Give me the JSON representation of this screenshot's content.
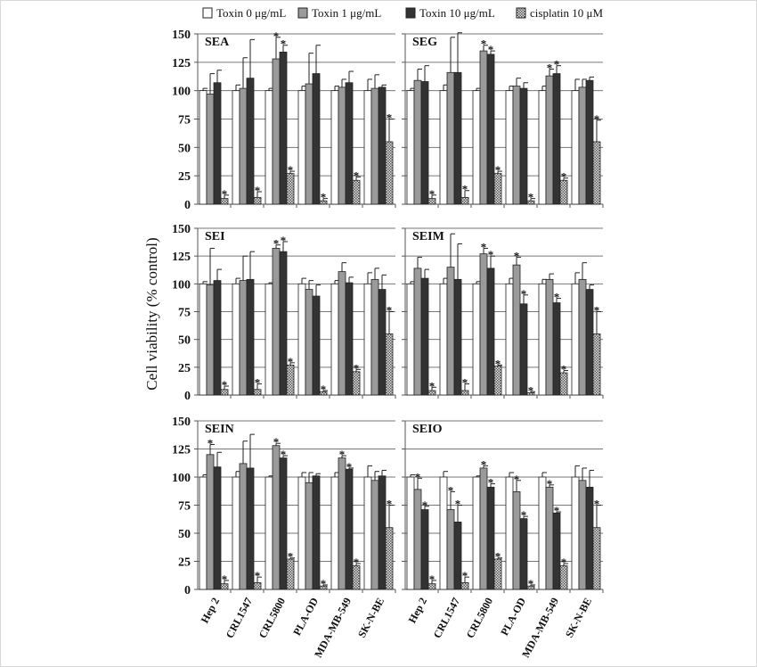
{
  "chart_data": {
    "type": "bar",
    "ylabel": "Cell viability (% control)",
    "ylim": [
      0,
      150
    ],
    "yticks": [
      0,
      25,
      50,
      75,
      100,
      125,
      150
    ],
    "grid": true,
    "legend_placement": "top",
    "categories": [
      "Hep 2",
      "CRL1547",
      "CRL5800",
      "PLA-OD",
      "MDA-MB-549",
      "SK-N-BE"
    ],
    "series_meta": [
      {
        "name": "Toxin 0 μg/mL",
        "color": "#ffffff",
        "pattern": "solid"
      },
      {
        "name": "Toxin 1 μg/mL",
        "color": "#9a9a9a",
        "pattern": "solid"
      },
      {
        "name": "Toxin 10 μg/mL",
        "color": "#333333",
        "pattern": "solid"
      },
      {
        "name": "cisplatin  10 μM",
        "color": "#bbbbbb",
        "pattern": "checker"
      }
    ],
    "panels": [
      {
        "title": "SEA",
        "values": [
          [
            100,
            97,
            107,
            5
          ],
          [
            100,
            102,
            111,
            6
          ],
          [
            100,
            128,
            134,
            27
          ],
          [
            100,
            106,
            115,
            3
          ],
          [
            100,
            103,
            107,
            21
          ],
          [
            100,
            102,
            103,
            55
          ]
        ],
        "errors": [
          [
            2,
            18,
            11,
            3
          ],
          [
            5,
            27,
            34,
            5
          ],
          [
            2,
            19,
            6,
            2
          ],
          [
            4,
            27,
            25,
            2
          ],
          [
            4,
            7,
            10,
            3
          ],
          [
            10,
            12,
            2,
            20
          ]
        ],
        "significant": [
          [
            0,
            0,
            0,
            1
          ],
          [
            0,
            0,
            0,
            1
          ],
          [
            0,
            1,
            1,
            1
          ],
          [
            0,
            0,
            0,
            1
          ],
          [
            0,
            0,
            0,
            1
          ],
          [
            0,
            0,
            0,
            1
          ]
        ]
      },
      {
        "title": "SEG",
        "values": [
          [
            100,
            109,
            108,
            5
          ],
          [
            100,
            116,
            116,
            6
          ],
          [
            100,
            135,
            132,
            27
          ],
          [
            100,
            104,
            102,
            3
          ],
          [
            100,
            113,
            115,
            21
          ],
          [
            100,
            103,
            109,
            55
          ]
        ],
        "errors": [
          [
            2,
            10,
            14,
            3
          ],
          [
            5,
            31,
            35,
            6
          ],
          [
            2,
            5,
            3,
            2
          ],
          [
            4,
            7,
            5,
            2
          ],
          [
            4,
            6,
            7,
            2
          ],
          [
            10,
            7,
            3,
            19
          ]
        ],
        "significant": [
          [
            0,
            0,
            0,
            1
          ],
          [
            0,
            0,
            0,
            1
          ],
          [
            0,
            1,
            1,
            1
          ],
          [
            0,
            0,
            0,
            1
          ],
          [
            0,
            1,
            1,
            1
          ],
          [
            0,
            0,
            0,
            1
          ]
        ]
      },
      {
        "title": "SEI",
        "values": [
          [
            100,
            99,
            103,
            5
          ],
          [
            100,
            103,
            104,
            5
          ],
          [
            100,
            132,
            129,
            27
          ],
          [
            100,
            95,
            89,
            3
          ],
          [
            100,
            111,
            101,
            21
          ],
          [
            100,
            104,
            95,
            55
          ]
        ],
        "errors": [
          [
            2,
            33,
            10,
            3
          ],
          [
            5,
            22,
            25,
            5
          ],
          [
            1,
            3,
            9,
            2
          ],
          [
            5,
            8,
            10,
            1
          ],
          [
            3,
            8,
            5,
            2
          ],
          [
            10,
            10,
            13,
            20
          ]
        ],
        "significant": [
          [
            0,
            0,
            0,
            1
          ],
          [
            0,
            0,
            0,
            1
          ],
          [
            0,
            1,
            1,
            1
          ],
          [
            0,
            0,
            0,
            1
          ],
          [
            0,
            0,
            0,
            1
          ],
          [
            0,
            0,
            0,
            1
          ]
        ]
      },
      {
        "title": "SEIM",
        "values": [
          [
            100,
            114,
            105,
            4
          ],
          [
            100,
            115,
            104,
            4
          ],
          [
            100,
            127,
            114,
            26
          ],
          [
            100,
            117,
            82,
            2
          ],
          [
            100,
            104,
            83,
            20
          ],
          [
            100,
            104,
            95,
            55
          ]
        ],
        "errors": [
          [
            2,
            10,
            8,
            3
          ],
          [
            5,
            30,
            32,
            6
          ],
          [
            2,
            5,
            11,
            1
          ],
          [
            5,
            7,
            8,
            1
          ],
          [
            4,
            5,
            4,
            2
          ],
          [
            10,
            15,
            4,
            20
          ]
        ],
        "significant": [
          [
            0,
            0,
            0,
            1
          ],
          [
            0,
            0,
            0,
            1
          ],
          [
            0,
            1,
            1,
            1
          ],
          [
            0,
            1,
            1,
            1
          ],
          [
            0,
            0,
            1,
            1
          ],
          [
            0,
            0,
            0,
            1
          ]
        ]
      },
      {
        "title": "SEIN",
        "values": [
          [
            100,
            120,
            109,
            5
          ],
          [
            100,
            112,
            108,
            6
          ],
          [
            100,
            128,
            117,
            27
          ],
          [
            100,
            95,
            101,
            3
          ],
          [
            100,
            117,
            107,
            21
          ],
          [
            100,
            97,
            101,
            55
          ]
        ],
        "errors": [
          [
            2,
            9,
            13,
            3
          ],
          [
            5,
            20,
            30,
            5
          ],
          [
            1,
            2,
            2,
            1
          ],
          [
            4,
            9,
            2,
            1
          ],
          [
            4,
            2,
            1,
            2
          ],
          [
            10,
            8,
            5,
            20
          ]
        ],
        "significant": [
          [
            0,
            1,
            0,
            1
          ],
          [
            0,
            0,
            0,
            1
          ],
          [
            0,
            1,
            1,
            1
          ],
          [
            0,
            0,
            0,
            1
          ],
          [
            0,
            1,
            1,
            1
          ],
          [
            0,
            0,
            0,
            1
          ]
        ]
      },
      {
        "title": "SEIO",
        "values": [
          [
            100,
            89,
            71,
            5
          ],
          [
            100,
            71,
            60,
            6
          ],
          [
            100,
            108,
            91,
            27
          ],
          [
            100,
            87,
            63,
            3
          ],
          [
            100,
            91,
            68,
            21
          ],
          [
            100,
            97,
            91,
            55
          ]
        ],
        "errors": [
          [
            2,
            10,
            3,
            3
          ],
          [
            5,
            16,
            15,
            5
          ],
          [
            1,
            2,
            3,
            1
          ],
          [
            4,
            10,
            2,
            1
          ],
          [
            4,
            2,
            1,
            2
          ],
          [
            10,
            11,
            15,
            20
          ]
        ],
        "significant": [
          [
            0,
            1,
            1,
            1
          ],
          [
            0,
            1,
            1,
            1
          ],
          [
            0,
            1,
            1,
            1
          ],
          [
            0,
            1,
            1,
            1
          ],
          [
            0,
            1,
            1,
            1
          ],
          [
            0,
            0,
            0,
            1
          ]
        ]
      }
    ]
  }
}
